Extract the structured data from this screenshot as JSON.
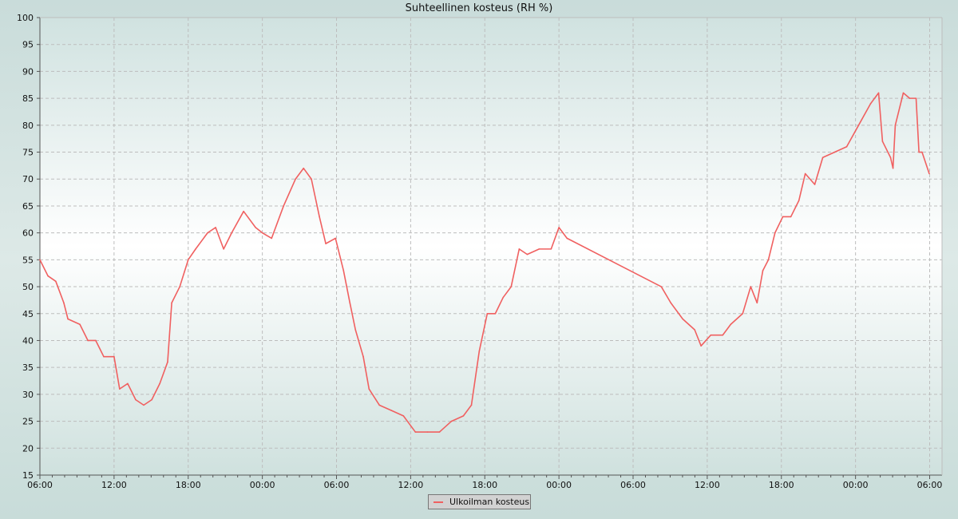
{
  "chart_data": {
    "type": "line",
    "title": "Suhteellinen kosteus (RH %)",
    "xlabel": "",
    "ylabel": "",
    "ylim": [
      15,
      100
    ],
    "yticks": [
      15,
      20,
      25,
      30,
      35,
      40,
      45,
      50,
      55,
      60,
      65,
      70,
      75,
      80,
      85,
      90,
      95,
      100
    ],
    "xlim": [
      "06:00",
      "07:00"
    ],
    "xticks": [
      "06:00",
      "12:00",
      "18:00",
      "00:00",
      "06:00",
      "12:00",
      "18:00",
      "00:00",
      "06:00",
      "12:00",
      "18:00",
      "00:00",
      "06:00"
    ],
    "grid": true,
    "legend_position": "bottom",
    "series": [
      {
        "name": "Ulkoilman kosteus",
        "color": "#f06060",
        "points": [
          [
            "06:00",
            55
          ],
          [
            "06:39",
            52
          ],
          [
            "07:17",
            51
          ],
          [
            "07:56",
            47
          ],
          [
            "08:16",
            44
          ],
          [
            "09:14",
            43
          ],
          [
            "09:53",
            40
          ],
          [
            "10:31",
            40
          ],
          [
            "11:10",
            37
          ],
          [
            "12:00",
            37
          ],
          [
            "12:27",
            31
          ],
          [
            "13:06",
            32
          ],
          [
            "13:45",
            29
          ],
          [
            "14:24",
            28
          ],
          [
            "15:03",
            29
          ],
          [
            "15:42",
            32
          ],
          [
            "16:20",
            36
          ],
          [
            "16:40",
            47
          ],
          [
            "17:19",
            50
          ],
          [
            "18:00",
            55
          ],
          [
            "18:36",
            57
          ],
          [
            "19:34",
            60
          ],
          [
            "20:13",
            61
          ],
          [
            "20:52",
            57
          ],
          [
            "21:31",
            60
          ],
          [
            "22:29",
            64
          ],
          [
            "23:27",
            61
          ],
          [
            "00:00",
            60
          ],
          [
            "00:45",
            59
          ],
          [
            "01:43",
            65
          ],
          [
            "02:41",
            70
          ],
          [
            "03:20",
            72
          ],
          [
            "03:58",
            70
          ],
          [
            "04:37",
            63
          ],
          [
            "05:08",
            58
          ],
          [
            "05:55",
            59
          ],
          [
            "06:34",
            53
          ],
          [
            "07:05",
            47
          ],
          [
            "07:32",
            42
          ],
          [
            "08:10",
            37
          ],
          [
            "08:38",
            31
          ],
          [
            "09:28",
            28
          ],
          [
            "10:27",
            27
          ],
          [
            "11:25",
            26
          ],
          [
            "12:23",
            23
          ],
          [
            "13:21",
            23
          ],
          [
            "14:20",
            23
          ],
          [
            "15:18",
            25
          ],
          [
            "16:16",
            26
          ],
          [
            "16:55",
            28
          ],
          [
            "17:33",
            38
          ],
          [
            "18:12",
            45
          ],
          [
            "18:51",
            45
          ],
          [
            "19:29",
            48
          ],
          [
            "20:08",
            50
          ],
          [
            "20:47",
            57
          ],
          [
            "21:26",
            56
          ],
          [
            "22:24",
            57
          ],
          [
            "23:22",
            57
          ],
          [
            "00:00",
            61
          ],
          [
            "00:39",
            59
          ],
          [
            "08:17",
            50
          ],
          [
            "09:03",
            47
          ],
          [
            "10:01",
            44
          ],
          [
            "10:59",
            42
          ],
          [
            "11:30",
            39
          ],
          [
            "12:17",
            41
          ],
          [
            "13:15",
            41
          ],
          [
            "13:54",
            43
          ],
          [
            "14:52",
            45
          ],
          [
            "15:31",
            50
          ],
          [
            "16:02",
            47
          ],
          [
            "16:30",
            53
          ],
          [
            "16:57",
            55
          ],
          [
            "17:29",
            60
          ],
          [
            "18:07",
            63
          ],
          [
            "18:46",
            63
          ],
          [
            "19:25",
            66
          ],
          [
            "19:56",
            71
          ],
          [
            "20:42",
            69
          ],
          [
            "21:21",
            74
          ],
          [
            "22:19",
            75
          ],
          [
            "23:17",
            76
          ],
          [
            "00:15",
            80
          ],
          [
            "01:13",
            84
          ],
          [
            "01:52",
            86
          ],
          [
            "02:11",
            77
          ],
          [
            "02:50",
            74
          ],
          [
            "03:02",
            72
          ],
          [
            "03:13",
            80
          ],
          [
            "03:52",
            86
          ],
          [
            "04:23",
            85
          ],
          [
            "04:54",
            85
          ],
          [
            "05:08",
            75
          ],
          [
            "05:23",
            75
          ],
          [
            "05:58",
            71
          ]
        ]
      }
    ]
  }
}
